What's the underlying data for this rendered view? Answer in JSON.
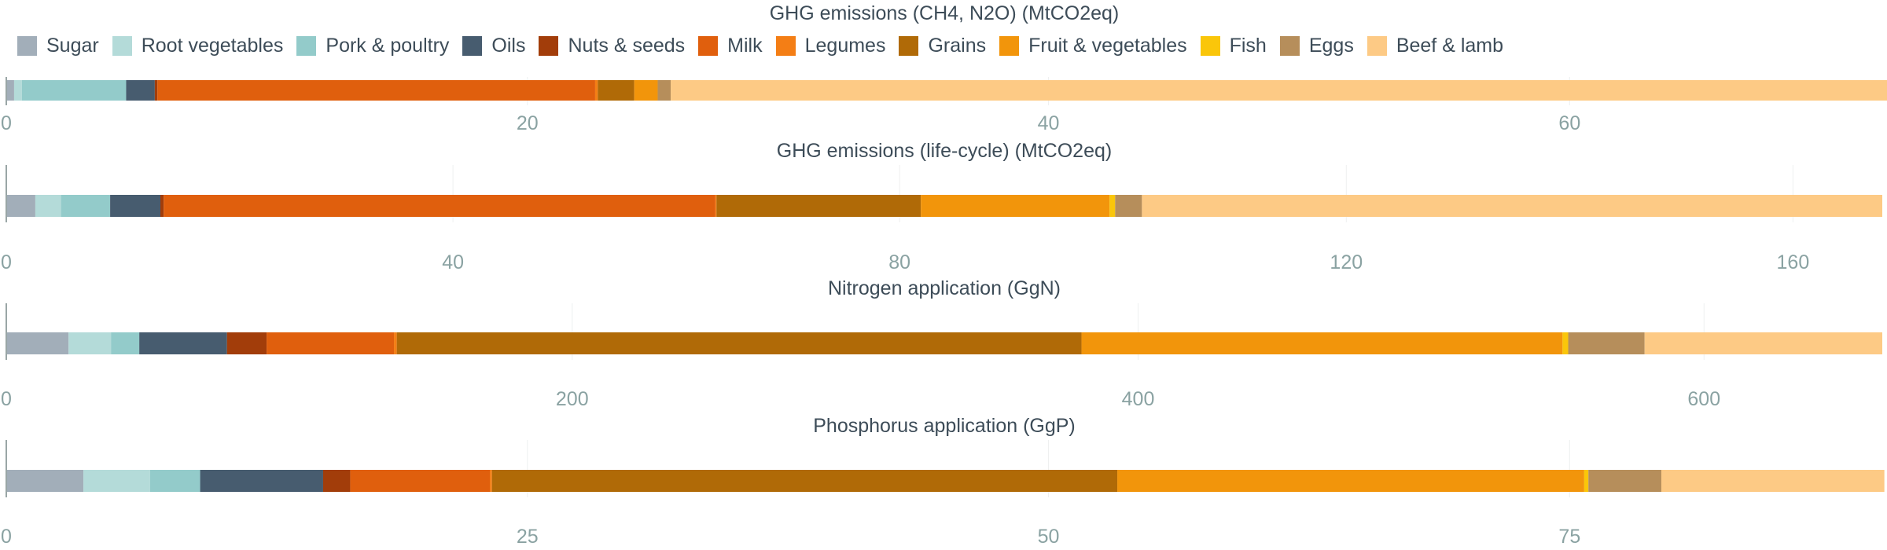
{
  "legend": [
    {
      "name": "Sugar",
      "color": "#a2aeb9"
    },
    {
      "name": "Root vegetables",
      "color": "#b4dbd9"
    },
    {
      "name": "Pork & poultry",
      "color": "#93cbca"
    },
    {
      "name": "Oils",
      "color": "#475c6f"
    },
    {
      "name": "Nuts & seeds",
      "color": "#a23d0a"
    },
    {
      "name": "Milk",
      "color": "#e05f0d"
    },
    {
      "name": "Legumes",
      "color": "#f47e15"
    },
    {
      "name": "Grains",
      "color": "#b06a07"
    },
    {
      "name": "Fruit & vegetables",
      "color": "#f2950b"
    },
    {
      "name": "Fish",
      "color": "#fac60a"
    },
    {
      "name": "Eggs",
      "color": "#b68e5b"
    },
    {
      "name": "Beef & lamb",
      "color": "#fdca85"
    }
  ],
  "chart_data": [
    {
      "type": "bar",
      "orientation": "horizontal",
      "stacked": true,
      "title": "GHG emissions (CH4, N2O) (MtCO2eq)",
      "xlim": [
        0,
        72
      ],
      "ticks": [
        0,
        20,
        40,
        60
      ],
      "series": [
        {
          "name": "Sugar",
          "value": 0.3
        },
        {
          "name": "Root vegetables",
          "value": 0.3
        },
        {
          "name": "Pork & poultry",
          "value": 4.0
        },
        {
          "name": "Oils",
          "value": 1.1
        },
        {
          "name": "Nuts & seeds",
          "value": 0.1
        },
        {
          "name": "Milk",
          "value": 16.8
        },
        {
          "name": "Legumes",
          "value": 0.1
        },
        {
          "name": "Grains",
          "value": 1.4
        },
        {
          "name": "Fruit & vegetables",
          "value": 0.9
        },
        {
          "name": "Fish",
          "value": 0.0
        },
        {
          "name": "Eggs",
          "value": 0.5
        },
        {
          "name": "Beef & lamb",
          "value": 46.9
        }
      ]
    },
    {
      "type": "bar",
      "orientation": "horizontal",
      "stacked": true,
      "title": "GHG emissions (life-cycle) (MtCO2eq)",
      "xlim": [
        0,
        168
      ],
      "ticks": [
        0,
        40,
        80,
        120,
        160
      ],
      "series": [
        {
          "name": "Sugar",
          "value": 2.6
        },
        {
          "name": "Root vegetables",
          "value": 2.3
        },
        {
          "name": "Pork & poultry",
          "value": 4.4
        },
        {
          "name": "Oils",
          "value": 4.5
        },
        {
          "name": "Nuts & seeds",
          "value": 0.3
        },
        {
          "name": "Milk",
          "value": 49.4
        },
        {
          "name": "Legumes",
          "value": 0.1
        },
        {
          "name": "Grains",
          "value": 18.3
        },
        {
          "name": "Fruit & vegetables",
          "value": 16.9
        },
        {
          "name": "Fish",
          "value": 0.5
        },
        {
          "name": "Eggs",
          "value": 2.4
        },
        {
          "name": "Beef & lamb",
          "value": 66.3
        }
      ]
    },
    {
      "type": "bar",
      "orientation": "horizontal",
      "stacked": true,
      "title": "Nitrogen application (GgN)",
      "xlim": [
        0,
        663
      ],
      "ticks": [
        0,
        200,
        400,
        600
      ],
      "series": [
        {
          "name": "Sugar",
          "value": 22
        },
        {
          "name": "Root vegetables",
          "value": 15
        },
        {
          "name": "Pork & poultry",
          "value": 10
        },
        {
          "name": "Oils",
          "value": 31
        },
        {
          "name": "Nuts & seeds",
          "value": 14
        },
        {
          "name": "Milk",
          "value": 45
        },
        {
          "name": "Legumes",
          "value": 1
        },
        {
          "name": "Grains",
          "value": 242
        },
        {
          "name": "Fruit & vegetables",
          "value": 170
        },
        {
          "name": "Fish",
          "value": 2
        },
        {
          "name": "Eggs",
          "value": 27
        },
        {
          "name": "Beef & lamb",
          "value": 84
        }
      ]
    },
    {
      "type": "bar",
      "orientation": "horizontal",
      "stacked": true,
      "title": "Phosphorus application (GgP)",
      "xlim": [
        0,
        90
      ],
      "ticks": [
        0,
        25,
        50,
        75
      ],
      "series": [
        {
          "name": "Sugar",
          "value": 3.7
        },
        {
          "name": "Root vegetables",
          "value": 3.2
        },
        {
          "name": "Pork & poultry",
          "value": 2.4
        },
        {
          "name": "Oils",
          "value": 5.9
        },
        {
          "name": "Nuts & seeds",
          "value": 1.3
        },
        {
          "name": "Milk",
          "value": 6.7
        },
        {
          "name": "Legumes",
          "value": 0.1
        },
        {
          "name": "Grains",
          "value": 30.0
        },
        {
          "name": "Fruit & vegetables",
          "value": 22.4
        },
        {
          "name": "Fish",
          "value": 0.2
        },
        {
          "name": "Eggs",
          "value": 3.5
        },
        {
          "name": "Beef & lamb",
          "value": 10.7
        }
      ]
    }
  ]
}
